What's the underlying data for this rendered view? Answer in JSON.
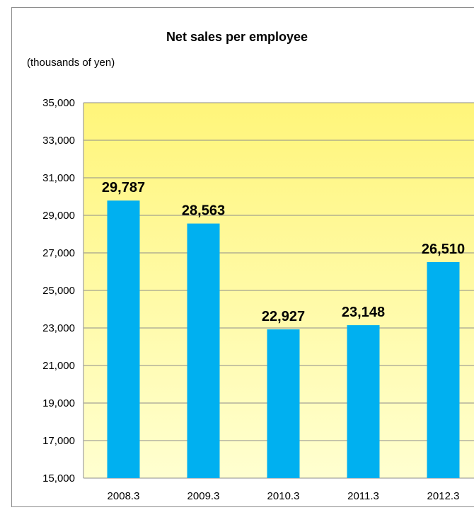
{
  "chart_data": {
    "type": "bar",
    "title": "Net sales per employee",
    "unit_label": "(thousands of yen)",
    "categories": [
      "2008.3",
      "2009.3",
      "2010.3",
      "2011.3",
      "2012.3"
    ],
    "values": [
      29787,
      28563,
      22927,
      23148,
      26510
    ],
    "value_labels": [
      "29,787",
      "28,563",
      "22,927",
      "23,148",
      "26,510"
    ],
    "ylim": [
      15000,
      35000
    ],
    "yticks": [
      15000,
      17000,
      19000,
      21000,
      23000,
      25000,
      27000,
      29000,
      31000,
      33000,
      35000
    ],
    "ytick_labels": [
      "15,000",
      "17,000",
      "19,000",
      "21,000",
      "23,000",
      "25,000",
      "27,000",
      "29,000",
      "31,000",
      "33,000",
      "35,000"
    ],
    "grid": true,
    "colors": {
      "bar": "#00b0f0",
      "plot_bg_top": "#fff57a",
      "plot_bg_bottom": "#ffffd0",
      "gridline": "#8c8c8c"
    }
  }
}
